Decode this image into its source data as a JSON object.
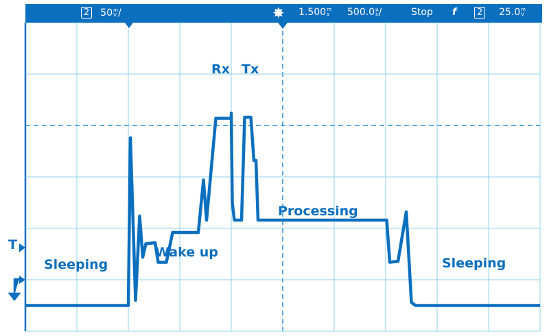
{
  "header": {
    "channel": "2",
    "vscale_value": "50",
    "vscale_unit_top": "m",
    "vscale_unit_bottom": "V",
    "vscale_suffix": "/",
    "acq_icon": "starburst-icon",
    "delay_value": "1.500",
    "delay_unit_top": "m",
    "delay_unit_bottom": "s",
    "timebase_value": "500.0",
    "timebase_unit_top": "µ",
    "timebase_unit_bottom": "s",
    "timebase_suffix": "/",
    "run_state": "Stop",
    "trigger_edge_icon": "rising-edge-icon",
    "trigger_channel": "2",
    "trigger_level_value": "25.0",
    "trigger_level_unit_top": "m",
    "trigger_level_unit_bottom": "V"
  },
  "markers": {
    "trigger_level": "T"
  },
  "colors": {
    "trace": "#0b6fbf",
    "grid": "#8fd0ec",
    "header": "#0b6fbf"
  },
  "chart_data": {
    "type": "line",
    "grid": true,
    "x_divisions": 10,
    "y_divisions": 6,
    "xunit": "ms",
    "yunit": "mV",
    "xlim": [
      0,
      5
    ],
    "ylim": [
      -25,
      275
    ],
    "series": [
      {
        "x": [
          0,
          1.0,
          1.02,
          1.07,
          1.11,
          1.14,
          1.17,
          1.26,
          1.29,
          1.37,
          1.43,
          1.68,
          1.73,
          1.76,
          1.85,
          2.0,
          2.0,
          2.01,
          2.03,
          2.1,
          2.13,
          2.19,
          2.22,
          2.24,
          2.26,
          3.51,
          3.54,
          3.62,
          3.7,
          3.75,
          3.79,
          5.0
        ],
        "y": [
          0,
          0,
          163,
          5,
          87,
          47,
          60,
          61,
          42,
          42,
          71,
          71,
          122,
          83,
          182,
          182,
          187,
          100,
          83,
          83,
          183,
          183,
          141,
          141,
          83,
          83,
          42,
          43,
          91,
          3,
          0,
          0
        ]
      }
    ],
    "annotations": [
      "Sleeping",
      "Wake up",
      "Rx",
      "Tx",
      "Processing",
      "Sleeping"
    ]
  }
}
